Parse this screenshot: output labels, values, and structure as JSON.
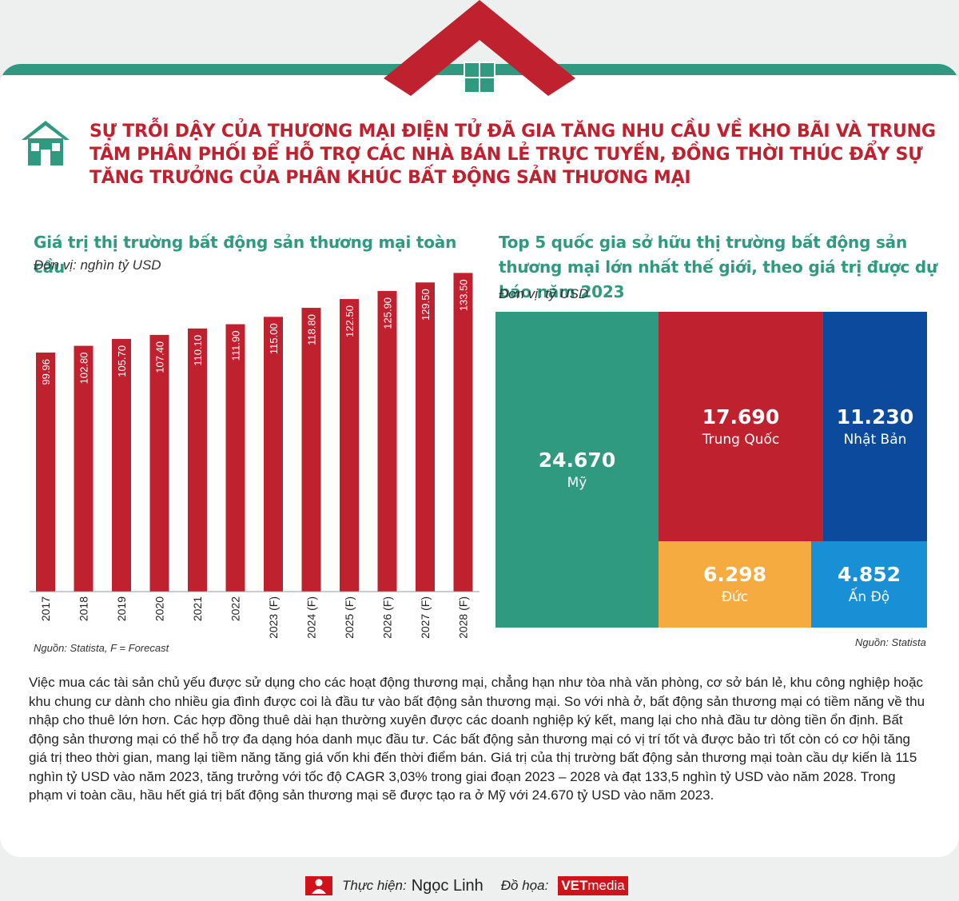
{
  "headline": "SỰ TRỖI DẬY CỦA THƯƠNG MẠI ĐIỆN TỬ ĐÃ GIA TĂNG NHU CẦU VỀ KHO BÃI VÀ TRUNG TÂM PHÂN PHỐI ĐỂ HỖ TRỢ CÁC NHÀ BÁN LẺ TRỰC TUYẾN, ĐỒNG THỜI THÚC ĐẨY SỰ TĂNG TRƯỞNG CỦA PHÂN KHÚC BẤT ĐỘNG SẢN THƯƠNG MẠI",
  "colors": {
    "green": "#2f9a80",
    "red": "#c0212f",
    "navy": "#0b4a9c",
    "orange": "#f5ab3f",
    "blue": "#1990d6"
  },
  "bar_chart": {
    "title": "Giá trị thị trường bất động sản thương mại toàn cầu",
    "unit": "Đơn vị: nghìn tỷ USD",
    "source": "Nguồn: Statista, F = Forecast"
  },
  "treemap_chart": {
    "title": "Top 5 quốc gia sở hữu thị trường bất động sản thương mại lớn nhất thế giới, theo giá trị được dự báo năm 2023",
    "unit": "Đơn vị: tỷ USD",
    "source": "Nguồn: Statista"
  },
  "chart_data": [
    {
      "type": "bar",
      "title": "Giá trị thị trường bất động sản thương mại toàn cầu",
      "ylabel": "Đơn vị: nghìn tỷ USD",
      "categories": [
        "2017",
        "2018",
        "2019",
        "2020",
        "2021",
        "2022",
        "2023 (F)",
        "2024 (F)",
        "2025 (F)",
        "2026 (F)",
        "2027 (F)",
        "2028 (F)"
      ],
      "values": [
        99.96,
        102.8,
        105.7,
        107.4,
        110.1,
        111.9,
        115.0,
        118.8,
        122.5,
        125.9,
        129.5,
        133.5
      ],
      "value_labels": [
        "99.96",
        "102.80",
        "105.70",
        "107.40",
        "110.10",
        "111.90",
        "115.00",
        "118.80",
        "122.50",
        "125.90",
        "129.50",
        "133.50"
      ],
      "color": "#c0212f",
      "grid": false
    },
    {
      "type": "treemap",
      "title": "Top 5 quốc gia sở hữu thị trường bất động sản thương mại lớn nhất thế giới, theo giá trị được dự báo năm 2023",
      "unit": "Đơn vị: tỷ USD",
      "items": [
        {
          "name": "Mỹ",
          "value": 24670,
          "label": "24.670",
          "color": "#2f9a80"
        },
        {
          "name": "Trung Quốc",
          "value": 17690,
          "label": "17.690",
          "color": "#c0212f"
        },
        {
          "name": "Nhật Bản",
          "value": 11230,
          "label": "11.230",
          "color": "#0b4a9c"
        },
        {
          "name": "Đức",
          "value": 6298,
          "label": "6.298",
          "color": "#f5ab3f"
        },
        {
          "name": "Ấn Độ",
          "value": 4852,
          "label": "4.852",
          "color": "#1990d6"
        }
      ]
    }
  ],
  "paragraph": "Việc mua các tài sản chủ yếu được sử dụng cho các hoạt động thương mại, chẳng hạn như tòa nhà văn phòng, cơ sở bán lẻ, khu công nghiệp hoặc khu chung cư dành cho nhiều gia đình được coi là đầu tư vào bất động sản thương mại. So với nhà ở, bất động sản thương mại có tiềm năng về thu nhập cho thuê lớn hơn. Các hợp đồng thuê dài hạn thường xuyên được các doanh nghiệp ký kết, mang lại cho nhà đầu tư dòng tiền ổn định. Bất động sản thương mại có thể hỗ trợ đa dạng hóa danh mục đầu tư. Các bất động sản thương mại có vị trí tốt và được bảo trì tốt còn có cơ hội tăng giá trị theo thời gian, mang lại tiềm năng tăng giá vốn khi đến thời điểm bán. Giá trị của thị trường bất động sản thương mại toàn cầu dự kiến là 115 nghìn tỷ USD vào năm 2023, tăng trưởng với tốc độ CAGR 3,03% trong giai đoạn 2023 – 2028 và đạt 133,5 nghìn tỷ USD vào năm 2028. Trong phạm vi toàn cầu, hầu hết giá trị bất động sản thương mại sẽ được tạo ra ở Mỹ với 24.670 tỷ USD vào năm 2023.",
  "footer": {
    "author_label": "Thực hiện:",
    "author": "Ngọc Linh",
    "design_label": "Đồ họa:",
    "logo_bold": "VET",
    "logo_rest": "media"
  }
}
